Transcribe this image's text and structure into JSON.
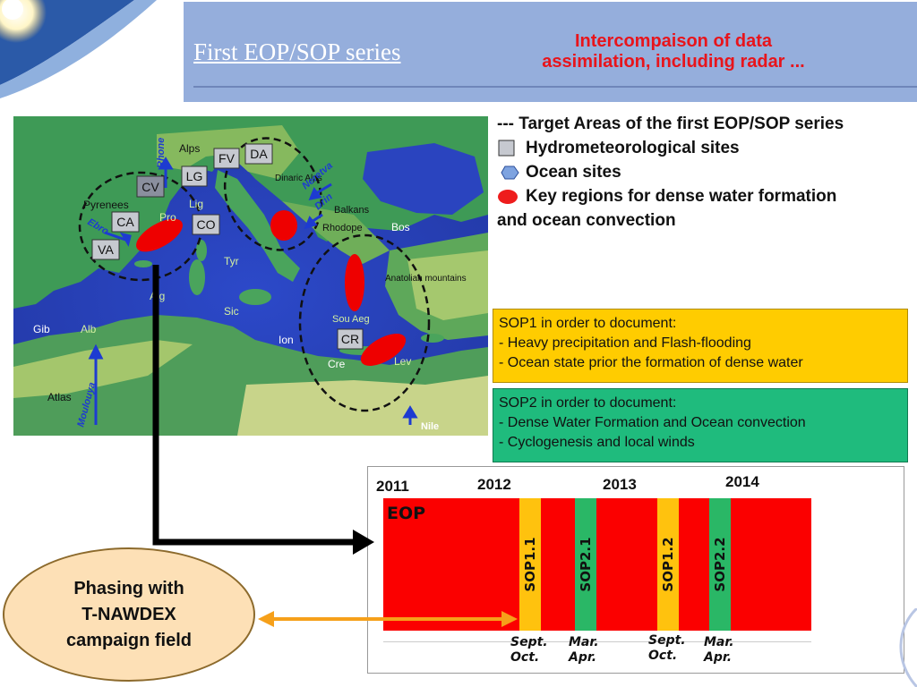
{
  "header": {
    "title": "First EOP/SOP series",
    "subtitle_line1": "Intercompaison of data",
    "subtitle_line2": "assimilation, including radar ..."
  },
  "map": {
    "seas": [
      "Alb",
      "Gib",
      "Lig",
      "Pro",
      "Tyr",
      "Alg",
      "Sic",
      "Ion",
      "Cre",
      "Lev",
      "Sou Aeg",
      "Bos",
      "Atlas"
    ],
    "regions": [
      "Alps",
      "Pyrenees",
      "Dinaric Alps",
      "Balkans",
      "Rhodope",
      "Anatolian mountains"
    ],
    "rivers": [
      "Rhone",
      "Ebro",
      "Neretva",
      "Drin",
      "Moulouya",
      "Nile"
    ],
    "hydro_sites": [
      "CV",
      "LG",
      "FV",
      "DA",
      "CA",
      "CO",
      "VA"
    ],
    "ocean_sites": [
      "CR"
    ]
  },
  "legend": {
    "heading": "--- Target Areas of the first EOP/SOP series",
    "hydro": "Hydrometeorological sites",
    "ocean": "Ocean sites",
    "key_line1": "Key regions for dense water formation",
    "key_line2": "and ocean convection"
  },
  "sop1": {
    "title": "SOP1 in order to document:",
    "items": [
      "- Heavy precipitation and Flash-flooding",
      "- Ocean state prior the formation of dense water"
    ]
  },
  "sop2": {
    "title": "SOP2 in order to document:",
    "items": [
      "- Dense Water Formation and Ocean convection",
      "- Cyclogenesis and local winds"
    ]
  },
  "timeline": {
    "years": [
      "2011",
      "2012",
      "2013",
      "2014"
    ],
    "eop_label": "EOP",
    "sops": [
      "SOP1.1",
      "SOP2.1",
      "SOP1.2",
      "SOP2.2"
    ],
    "months": [
      [
        "Sept.",
        "Oct."
      ],
      [
        "Mar.",
        "Apr."
      ],
      [
        "Sept.",
        "Oct."
      ],
      [
        "Mar.",
        "Apr."
      ]
    ]
  },
  "phasing": [
    "Phasing with",
    "T-NAWDEX",
    "campaign field"
  ],
  "colors": {
    "header_band": "#95aedc",
    "accent_red": "#e8141b",
    "sop1_box": "#ffcc00",
    "sop2_box": "#1fbb7d",
    "eop_bar": "#fb0000",
    "arrow_orange": "#f6a01a"
  }
}
